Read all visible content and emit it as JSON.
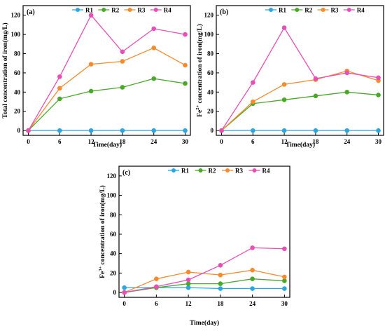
{
  "chart_data": [
    {
      "type": "line",
      "panel_label": "(a)",
      "xlabel": "Time(day)",
      "ylabel": "Total concentration of iron(mg/L)",
      "x": [
        0,
        6,
        12,
        18,
        24,
        30
      ],
      "xlim": [
        -1,
        31
      ],
      "ylim": [
        -5,
        130
      ],
      "xticks": [
        "0",
        "6",
        "12",
        "18",
        "24",
        "30"
      ],
      "yticks": [
        "0",
        "20",
        "40",
        "60",
        "80",
        "100",
        "120"
      ],
      "legend": "top",
      "series": [
        {
          "name": "R1",
          "color": "#2ca6df",
          "values": [
            0,
            0,
            0,
            0,
            0,
            0
          ]
        },
        {
          "name": "R2",
          "color": "#4aa829",
          "values": [
            0,
            33,
            41,
            45,
            54,
            49
          ]
        },
        {
          "name": "R3",
          "color": "#f58b2c",
          "values": [
            0,
            44,
            69,
            72,
            86,
            68
          ]
        },
        {
          "name": "R4",
          "color": "#e84fb6",
          "values": [
            0,
            56,
            120,
            82,
            106,
            100
          ]
        }
      ]
    },
    {
      "type": "line",
      "panel_label": "(b)",
      "xlabel": "Time(day)",
      "ylabel_prefix": "Fe",
      "ylabel_sup": "2+",
      "ylabel_rest": " concentration of iron(mg/L)",
      "x": [
        0,
        6,
        12,
        18,
        24,
        30
      ],
      "xlim": [
        -1,
        31
      ],
      "ylim": [
        -5,
        130
      ],
      "xticks": [
        "0",
        "6",
        "12",
        "18",
        "24",
        "30"
      ],
      "yticks": [
        "0",
        "20",
        "40",
        "60",
        "80",
        "100",
        "120"
      ],
      "legend": "top",
      "series": [
        {
          "name": "R1",
          "color": "#2ca6df",
          "values": [
            0,
            0,
            0,
            0,
            0,
            0
          ]
        },
        {
          "name": "R2",
          "color": "#4aa829",
          "values": [
            0,
            28,
            32,
            36,
            40,
            37
          ]
        },
        {
          "name": "R3",
          "color": "#f58b2c",
          "values": [
            0,
            30,
            48,
            53,
            62,
            52
          ]
        },
        {
          "name": "R4",
          "color": "#e84fb6",
          "values": [
            0,
            50,
            107,
            54,
            60,
            55
          ]
        }
      ]
    },
    {
      "type": "line",
      "panel_label": "(c)",
      "xlabel": "Time(day)",
      "ylabel_prefix": "Fe",
      "ylabel_sup": "3+",
      "ylabel_rest": " concentration of iron(mg/L)",
      "x": [
        0,
        6,
        12,
        18,
        24,
        30
      ],
      "xlim": [
        -1,
        31
      ],
      "ylim": [
        -5,
        130
      ],
      "xticks": [
        "0",
        "6",
        "12",
        "18",
        "24",
        "30"
      ],
      "yticks": [
        "0",
        "20",
        "40",
        "60",
        "80",
        "100",
        "120"
      ],
      "legend": "top",
      "series": [
        {
          "name": "R1",
          "color": "#2ca6df",
          "values": [
            5,
            5,
            5,
            4,
            4,
            4
          ]
        },
        {
          "name": "R2",
          "color": "#4aa829",
          "values": [
            0,
            5,
            9,
            9,
            14,
            12
          ]
        },
        {
          "name": "R3",
          "color": "#f58b2c",
          "values": [
            0,
            14,
            21,
            18,
            23,
            16
          ]
        },
        {
          "name": "R4",
          "color": "#e84fb6",
          "values": [
            0,
            6,
            13,
            28,
            46,
            45
          ]
        }
      ]
    }
  ]
}
